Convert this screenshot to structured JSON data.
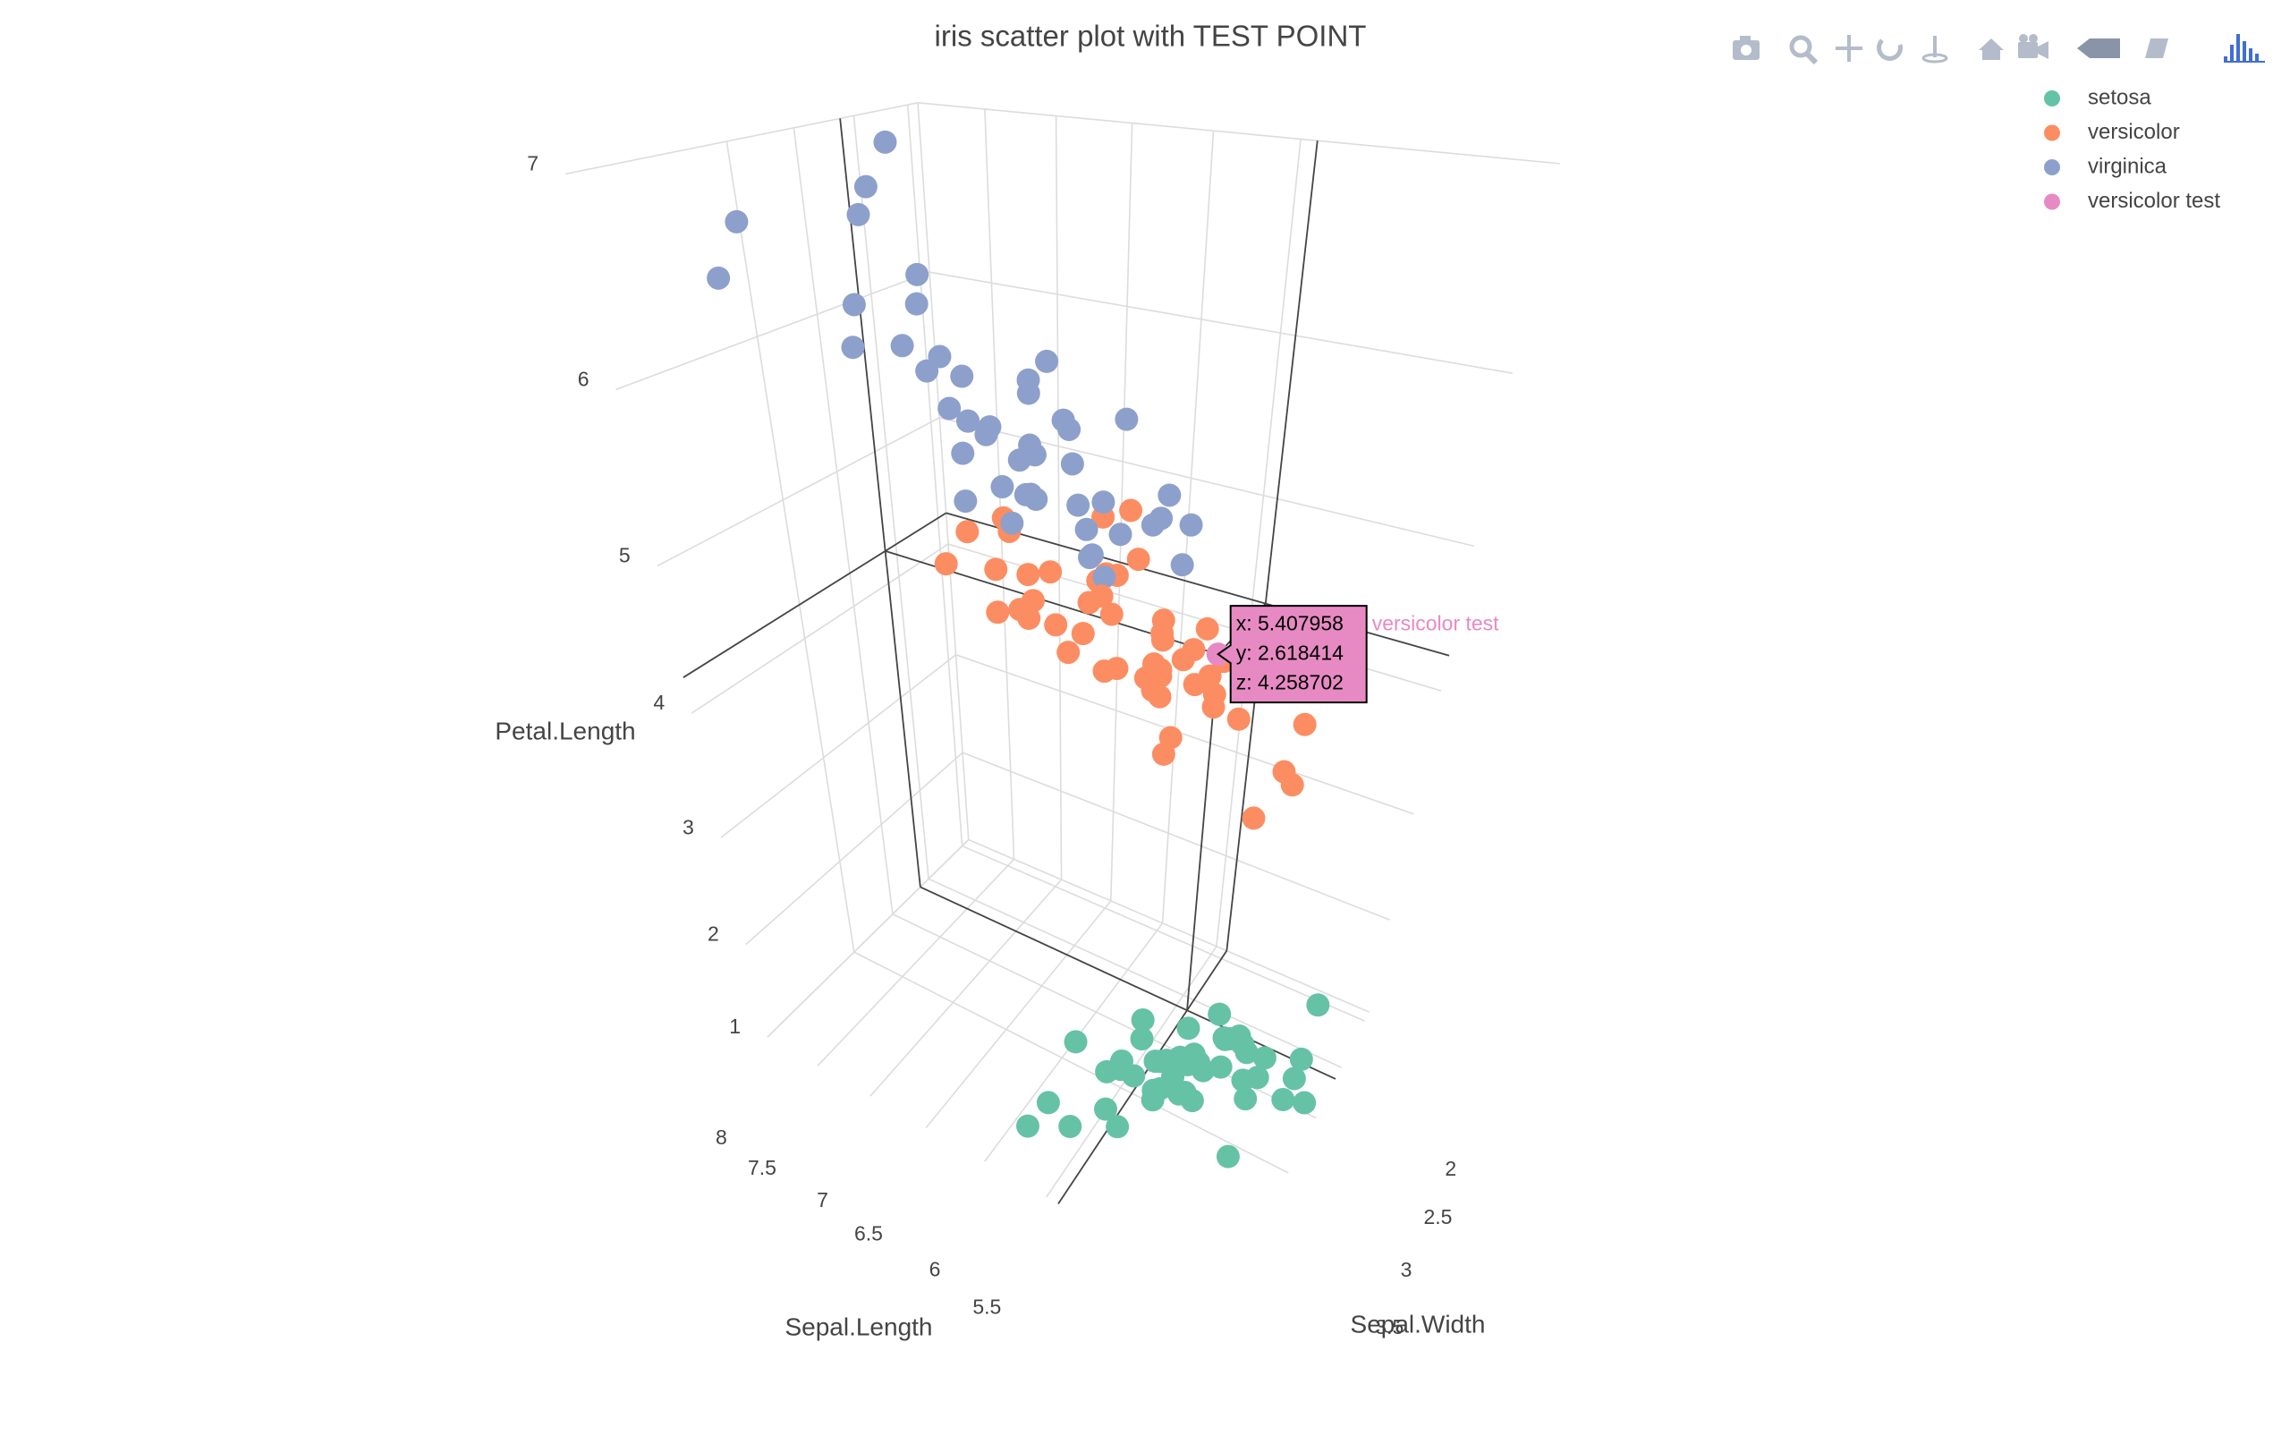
{
  "chart_data": {
    "type": "scatter3d",
    "title": "iris scatter plot with TEST POINT",
    "xlabel": "Sepal.Length",
    "ylabel": "Sepal.Width",
    "zlabel": "Petal.Length",
    "xlim": [
      4.2,
      8.0
    ],
    "ylim": [
      1.9,
      4.5
    ],
    "zlim": [
      1,
      7
    ],
    "xticks": [
      5.5,
      6,
      6.5,
      7,
      7.5,
      8
    ],
    "yticks": [
      2,
      2.5,
      3,
      3.5
    ],
    "zticks": [
      1,
      2,
      3,
      4,
      5,
      6,
      7
    ],
    "grid": true,
    "legend": "top-right",
    "series": [
      {
        "name": "setosa",
        "color": "#66c2a5",
        "x": [
          5.1,
          4.9,
          4.7,
          4.6,
          5.0,
          5.4,
          4.6,
          5.0,
          4.4,
          4.9,
          5.4,
          4.8,
          4.8,
          4.3,
          5.8,
          5.7,
          5.4,
          5.1,
          5.7,
          5.1,
          5.4,
          5.1,
          4.6,
          5.1,
          4.8,
          5.0,
          5.0,
          5.2,
          5.2,
          4.7,
          4.8,
          5.4,
          5.2,
          5.5,
          4.9,
          5.0,
          5.5,
          4.9,
          4.4,
          5.1,
          5.0,
          4.5,
          4.4,
          5.0,
          5.1,
          4.8,
          5.1,
          4.6,
          5.3,
          5.0
        ],
        "y": [
          3.5,
          3.0,
          3.2,
          3.1,
          3.6,
          3.9,
          3.4,
          3.4,
          2.9,
          3.1,
          3.7,
          3.4,
          3.0,
          3.0,
          4.0,
          4.4,
          3.9,
          3.5,
          3.8,
          3.8,
          3.4,
          3.7,
          3.6,
          3.3,
          3.4,
          3.0,
          3.4,
          3.5,
          3.4,
          3.2,
          3.1,
          3.4,
          4.1,
          4.2,
          3.1,
          3.2,
          3.5,
          3.6,
          3.0,
          3.4,
          3.5,
          2.3,
          3.2,
          3.5,
          3.8,
          3.0,
          3.8,
          3.2,
          3.7,
          3.3
        ],
        "z": [
          1.4,
          1.4,
          1.3,
          1.5,
          1.4,
          1.7,
          1.4,
          1.5,
          1.4,
          1.5,
          1.5,
          1.6,
          1.4,
          1.1,
          1.2,
          1.5,
          1.3,
          1.4,
          1.7,
          1.5,
          1.7,
          1.5,
          1.0,
          1.7,
          1.9,
          1.6,
          1.6,
          1.5,
          1.4,
          1.6,
          1.6,
          1.5,
          1.5,
          1.4,
          1.5,
          1.2,
          1.3,
          1.4,
          1.3,
          1.5,
          1.3,
          1.3,
          1.3,
          1.6,
          1.9,
          1.4,
          1.6,
          1.4,
          1.5,
          1.4
        ]
      },
      {
        "name": "versicolor",
        "color": "#fc8d62",
        "x": [
          7.0,
          6.4,
          6.9,
          5.5,
          6.5,
          5.7,
          6.3,
          4.9,
          6.6,
          5.2,
          5.0,
          5.9,
          6.0,
          6.1,
          5.6,
          6.7,
          5.6,
          5.8,
          6.2,
          5.6,
          5.9,
          6.1,
          6.3,
          6.1,
          6.4,
          6.6,
          6.8,
          6.7,
          6.0,
          5.7,
          5.5,
          5.5,
          5.8,
          6.0,
          5.4,
          6.0,
          6.7,
          6.3,
          5.6,
          5.5,
          5.5,
          6.1,
          5.8,
          5.0,
          5.6,
          5.7,
          5.7,
          6.2,
          5.1,
          5.7
        ],
        "y": [
          3.2,
          3.2,
          3.1,
          2.3,
          2.8,
          2.8,
          3.3,
          2.4,
          2.9,
          2.7,
          2.0,
          3.0,
          2.2,
          2.9,
          2.9,
          3.1,
          3.0,
          2.7,
          2.2,
          2.5,
          3.2,
          2.8,
          2.5,
          2.8,
          2.9,
          3.0,
          2.8,
          3.0,
          2.9,
          2.6,
          2.4,
          2.4,
          2.7,
          2.7,
          3.0,
          3.4,
          3.1,
          2.3,
          3.0,
          2.5,
          2.6,
          3.0,
          2.6,
          2.3,
          2.7,
          3.0,
          2.9,
          2.9,
          2.5,
          2.8
        ],
        "z": [
          4.7,
          4.5,
          4.9,
          4.0,
          4.6,
          4.5,
          4.7,
          3.3,
          4.6,
          3.9,
          3.5,
          4.2,
          4.0,
          4.7,
          3.6,
          4.4,
          4.5,
          4.1,
          4.5,
          3.9,
          4.8,
          4.0,
          4.9,
          4.7,
          4.3,
          4.4,
          4.8,
          5.0,
          4.5,
          3.5,
          3.8,
          3.7,
          3.9,
          5.1,
          4.5,
          4.5,
          4.7,
          4.4,
          4.1,
          4.0,
          4.4,
          4.6,
          4.0,
          3.3,
          4.2,
          4.2,
          4.2,
          4.3,
          3.0,
          4.1
        ]
      },
      {
        "name": "virginica",
        "color": "#8da0cb",
        "x": [
          6.3,
          5.8,
          7.1,
          6.3,
          6.5,
          7.6,
          4.9,
          7.3,
          6.7,
          7.2,
          6.5,
          6.4,
          6.8,
          5.7,
          5.8,
          6.4,
          6.5,
          7.7,
          7.7,
          6.0,
          6.9,
          5.6,
          7.7,
          6.3,
          6.7,
          7.2,
          6.2,
          6.1,
          6.4,
          7.2,
          7.4,
          7.9,
          6.4,
          6.3,
          6.1,
          7.7,
          6.3,
          6.4,
          6.0,
          6.9,
          6.7,
          6.9,
          5.8,
          6.8,
          6.7,
          6.7,
          6.3,
          6.5,
          6.2,
          5.9
        ],
        "y": [
          3.3,
          2.7,
          3.0,
          2.9,
          3.0,
          3.0,
          2.5,
          2.9,
          2.5,
          3.6,
          3.2,
          2.7,
          3.0,
          2.5,
          2.8,
          3.2,
          3.0,
          3.8,
          2.6,
          2.2,
          3.2,
          2.8,
          2.8,
          2.7,
          3.3,
          3.2,
          2.8,
          3.0,
          2.8,
          3.0,
          2.8,
          3.8,
          2.8,
          2.8,
          2.6,
          3.0,
          3.4,
          3.1,
          3.0,
          3.1,
          3.1,
          3.1,
          2.7,
          3.2,
          3.3,
          3.0,
          2.5,
          3.0,
          3.4,
          3.0
        ],
        "z": [
          6.0,
          5.1,
          5.9,
          5.6,
          5.8,
          6.6,
          4.5,
          6.3,
          5.8,
          6.1,
          5.1,
          5.3,
          5.5,
          5.0,
          5.1,
          5.3,
          5.5,
          6.7,
          6.9,
          5.0,
          5.7,
          4.9,
          6.7,
          4.9,
          5.7,
          6.0,
          4.8,
          4.9,
          5.6,
          5.8,
          6.1,
          6.4,
          5.6,
          5.1,
          5.6,
          6.1,
          5.6,
          5.5,
          4.8,
          5.4,
          5.6,
          5.1,
          5.1,
          5.9,
          5.7,
          5.2,
          5.0,
          5.2,
          5.4,
          5.1
        ]
      },
      {
        "name": "versicolor test",
        "color": "#e78ac3",
        "x": [
          5.407958
        ],
        "y": [
          2.618414
        ],
        "z": [
          4.258702
        ],
        "x_labels": [
          "x: 5.407958"
        ],
        "y_labels": [
          "y: 2.618414"
        ],
        "z_labels": [
          "z: 4.258702"
        ]
      }
    ]
  }
}
